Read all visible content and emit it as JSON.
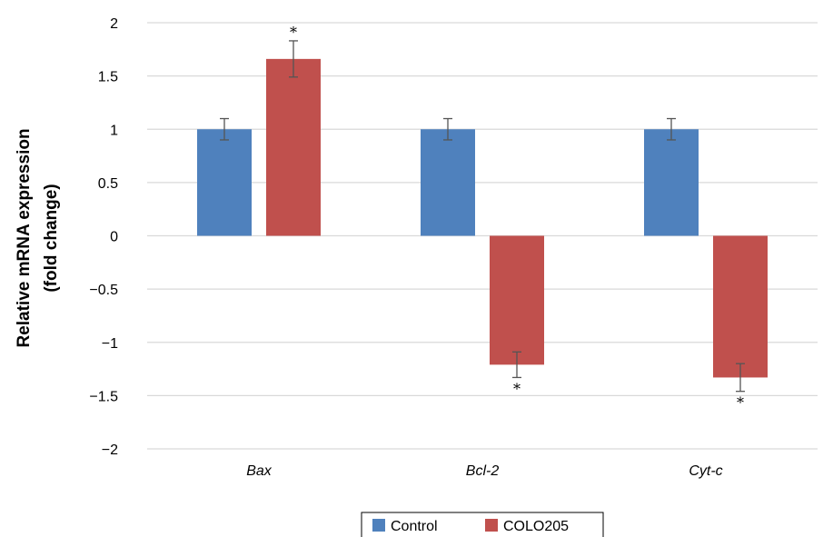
{
  "chart_data": {
    "type": "bar",
    "categories": [
      "Bax",
      "Bcl-2",
      "Cyt-c"
    ],
    "series": [
      {
        "name": "Control",
        "color": "#4f81bd",
        "values": [
          1.0,
          1.0,
          1.0
        ],
        "errors": [
          0.1,
          0.1,
          0.1
        ],
        "significance": [
          "",
          "",
          ""
        ]
      },
      {
        "name": "COLO205",
        "color": "#c0504d",
        "values": [
          1.66,
          -1.21,
          -1.33
        ],
        "errors": [
          0.17,
          0.12,
          0.13
        ],
        "significance": [
          "*",
          "*",
          "*"
        ]
      }
    ],
    "ylabel_lines": [
      "Relative mRNA expression",
      "(fold change)"
    ],
    "xlabel": "",
    "ylim": [
      -2,
      2
    ],
    "yticks": [
      2,
      1.5,
      1,
      0.5,
      0,
      -0.5,
      -1,
      -1.5,
      -2
    ],
    "ytick_labels": [
      "2",
      "1.5",
      "1",
      "0.5",
      "0",
      "−0.5",
      "−1",
      "−1.5",
      "−2"
    ],
    "grid": true,
    "legend_position": "bottom"
  }
}
